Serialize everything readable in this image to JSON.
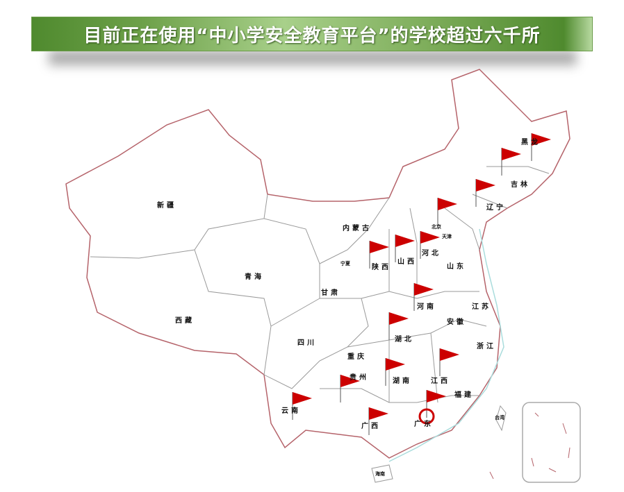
{
  "title": "目前正在使用“中小学安全教育平台”的学校超过六千所",
  "colors": {
    "banner": "#6ea14a",
    "border": "#b5636a",
    "flag": "#cc0000"
  },
  "provinces": [
    "黑龙",
    "吉林",
    "辽宁",
    "北京",
    "天津",
    "河北",
    "山东",
    "内蒙古",
    "新疆",
    "青海",
    "西藏",
    "甘肃",
    "宁夏",
    "陕西",
    "山西",
    "河南",
    "江苏",
    "安徽",
    "湖北",
    "浙江",
    "四川",
    "重庆",
    "贵州",
    "湖南",
    "江西",
    "福建",
    "云南",
    "广西",
    "广东",
    "台湾",
    "海南"
  ],
  "flag_icon": "red-flag",
  "flag_count": 15
}
